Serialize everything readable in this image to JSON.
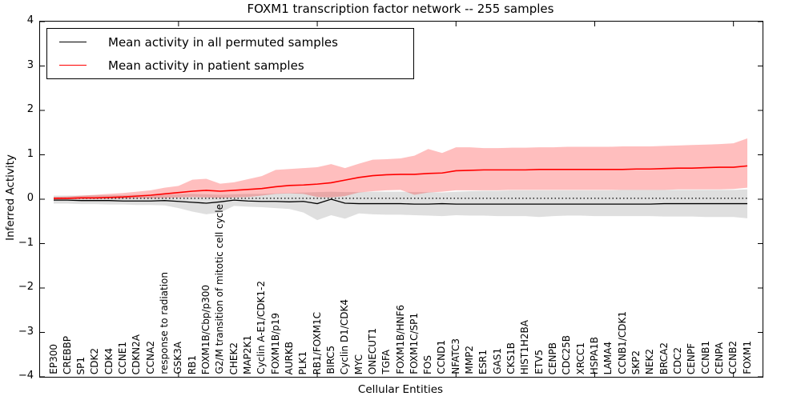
{
  "figure": {
    "title": "FOXM1 transcription factor network -- 255 samples",
    "xlabel": "Cellular Entities",
    "ylabel": "Inferred Activity"
  },
  "legend": {
    "items": [
      {
        "label": "Mean activity in all permuted samples",
        "color": "#000000"
      },
      {
        "label": "Mean activity in patient samples",
        "color": "#ff0000"
      }
    ]
  },
  "colors": {
    "patient_line": "#ff0000",
    "permuted_line": "#000000",
    "patient_band_fill": "rgba(255,40,40,0.30)",
    "permuted_band_fill": "rgba(110,110,110,0.22)",
    "baseline_dotted": "#000000"
  },
  "axes": {
    "y_tick_labels": [
      "4",
      "3",
      "2",
      "1",
      "0",
      "−1",
      "−2",
      "−3",
      "−4"
    ],
    "y_tick_values": [
      4,
      3,
      2,
      1,
      0,
      -1,
      -2,
      -3,
      -4
    ],
    "x_tick_indices": [
      9,
      19,
      29,
      39,
      49
    ]
  },
  "chart_data": {
    "type": "line",
    "title": "FOXM1 transcription factor network -- 255 samples",
    "xlabel": "Cellular Entities",
    "ylabel": "Inferred Activity",
    "ylim": [
      -4,
      4
    ],
    "grid": false,
    "legend_position": "upper left",
    "categories": [
      "EP300",
      "CREBBP",
      "SP1",
      "CDK2",
      "CDK4",
      "CCNE1",
      "CDKN2A",
      "CCNA2",
      "response to radiation",
      "GSK3A",
      "RB1",
      "FOXM1B/Cbp/p300",
      "G2/M transition of mitotic cell cycle",
      "CHEK2",
      "MAP2K1",
      "Cyclin A-E1/CDK1-2",
      "FOXM1B/p19",
      "AURKB",
      "PLK1",
      "RB1/FOXM1C",
      "BIRC5",
      "Cyclin D1/CDK4",
      "MYC",
      "ONECUT1",
      "TGFA",
      "FOXM1B/HNF6",
      "FOXM1C/SP1",
      "FOS",
      "CCND1",
      "NFATC3",
      "MMP2",
      "ESR1",
      "GAS1",
      "CKS1B",
      "HIST1H2BA",
      "ETV5",
      "CENPB",
      "CDC25B",
      "XRCC1",
      "HSPA1B",
      "LAMA4",
      "CCNB1/CDK1",
      "SKP2",
      "NEK2",
      "BRCA2",
      "CDC2",
      "CENPF",
      "CCNB1",
      "CENPA",
      "CCNB2",
      "FOXM1"
    ],
    "permuted_baseline": 0.02,
    "series": [
      {
        "name": "Mean activity in patient samples",
        "role": "patient_mean",
        "values": [
          0.02,
          0.02,
          0.03,
          0.03,
          0.04,
          0.05,
          0.07,
          0.09,
          0.12,
          0.15,
          0.18,
          0.2,
          0.18,
          0.2,
          0.22,
          0.24,
          0.28,
          0.31,
          0.32,
          0.34,
          0.37,
          0.43,
          0.49,
          0.53,
          0.55,
          0.56,
          0.56,
          0.58,
          0.59,
          0.64,
          0.65,
          0.66,
          0.66,
          0.66,
          0.66,
          0.67,
          0.67,
          0.67,
          0.67,
          0.67,
          0.67,
          0.67,
          0.68,
          0.68,
          0.69,
          0.7,
          0.7,
          0.71,
          0.72,
          0.72,
          0.75
        ]
      },
      {
        "name": "Patient band upper",
        "role": "patient_upper",
        "values": [
          0.05,
          0.06,
          0.08,
          0.1,
          0.12,
          0.14,
          0.17,
          0.2,
          0.26,
          0.3,
          0.44,
          0.46,
          0.35,
          0.38,
          0.45,
          0.52,
          0.66,
          0.68,
          0.7,
          0.72,
          0.79,
          0.7,
          0.8,
          0.89,
          0.9,
          0.92,
          0.98,
          1.13,
          1.04,
          1.17,
          1.17,
          1.15,
          1.15,
          1.16,
          1.16,
          1.17,
          1.17,
          1.18,
          1.18,
          1.18,
          1.18,
          1.19,
          1.19,
          1.19,
          1.2,
          1.21,
          1.22,
          1.23,
          1.24,
          1.26,
          1.37
        ]
      },
      {
        "name": "Patient band lower",
        "role": "patient_lower",
        "values": [
          -0.01,
          0.0,
          0.0,
          0.0,
          0.01,
          0.01,
          0.02,
          0.02,
          0.03,
          0.04,
          0.05,
          0.04,
          0.03,
          0.04,
          0.05,
          0.08,
          0.12,
          0.13,
          0.12,
          0.05,
          0.04,
          0.07,
          0.15,
          0.18,
          0.2,
          0.21,
          0.1,
          0.15,
          0.17,
          0.2,
          0.2,
          0.2,
          0.2,
          0.21,
          0.21,
          0.21,
          0.21,
          0.21,
          0.21,
          0.21,
          0.21,
          0.21,
          0.21,
          0.21,
          0.21,
          0.22,
          0.22,
          0.22,
          0.22,
          0.23,
          0.26
        ]
      },
      {
        "name": "Mean activity in all permuted samples",
        "role": "permuted_mean",
        "values": [
          -0.02,
          -0.02,
          -0.03,
          -0.03,
          -0.03,
          -0.04,
          -0.04,
          -0.04,
          -0.03,
          -0.05,
          -0.07,
          -0.09,
          -0.06,
          -0.02,
          -0.04,
          -0.05,
          -0.05,
          -0.06,
          -0.05,
          -0.1,
          0.0,
          -0.09,
          -0.1,
          -0.1,
          -0.1,
          -0.1,
          -0.11,
          -0.11,
          -0.1,
          -0.11,
          -0.11,
          -0.11,
          -0.11,
          -0.11,
          -0.11,
          -0.11,
          -0.11,
          -0.11,
          -0.11,
          -0.11,
          -0.11,
          -0.11,
          -0.11,
          -0.11,
          -0.1,
          -0.1,
          -0.1,
          -0.1,
          -0.1,
          -0.1,
          -0.1
        ]
      },
      {
        "name": "Permuted band upper",
        "role": "permuted_upper",
        "values": [
          0.08,
          0.08,
          0.08,
          0.09,
          0.09,
          0.09,
          0.1,
          0.1,
          0.1,
          0.11,
          0.12,
          0.11,
          0.1,
          0.11,
          0.12,
          0.12,
          0.13,
          0.14,
          0.15,
          0.16,
          0.17,
          0.16,
          0.16,
          0.17,
          0.17,
          0.17,
          0.16,
          0.16,
          0.15,
          0.17,
          0.18,
          0.19,
          0.19,
          0.2,
          0.2,
          0.2,
          0.2,
          0.2,
          0.2,
          0.2,
          0.2,
          0.21,
          0.21,
          0.21,
          0.21,
          0.21,
          0.21,
          0.21,
          0.21,
          0.21,
          0.22
        ]
      },
      {
        "name": "Permuted band lower",
        "role": "permuted_lower",
        "values": [
          -0.1,
          -0.1,
          -0.11,
          -0.11,
          -0.12,
          -0.12,
          -0.13,
          -0.13,
          -0.14,
          -0.2,
          -0.28,
          -0.34,
          -0.3,
          -0.15,
          -0.17,
          -0.18,
          -0.2,
          -0.22,
          -0.3,
          -0.47,
          -0.36,
          -0.44,
          -0.32,
          -0.34,
          -0.35,
          -0.35,
          -0.36,
          -0.37,
          -0.38,
          -0.36,
          -0.37,
          -0.37,
          -0.38,
          -0.38,
          -0.38,
          -0.4,
          -0.38,
          -0.37,
          -0.37,
          -0.38,
          -0.38,
          -0.38,
          -0.38,
          -0.38,
          -0.39,
          -0.39,
          -0.39,
          -0.4,
          -0.4,
          -0.4,
          -0.43
        ]
      }
    ]
  }
}
